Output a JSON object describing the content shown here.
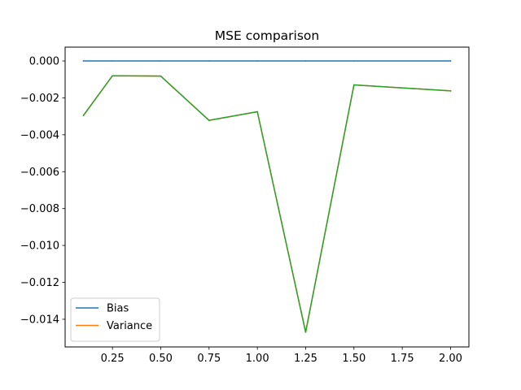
{
  "chart_data": {
    "type": "line",
    "title": "MSE comparison",
    "xlabel": "",
    "ylabel": "",
    "xlim": [
      0.005,
      2.095
    ],
    "ylim": [
      -0.0155,
      0.00075
    ],
    "xticks": [
      0.25,
      0.5,
      0.75,
      1.0,
      1.25,
      1.5,
      1.75,
      2.0
    ],
    "xtick_labels": [
      "0.25",
      "0.50",
      "0.75",
      "1.00",
      "1.25",
      "1.50",
      "1.75",
      "2.00"
    ],
    "yticks": [
      0.0,
      -0.002,
      -0.004,
      -0.006,
      -0.008,
      -0.01,
      -0.012,
      -0.014
    ],
    "ytick_labels": [
      "0.000",
      "−0.002",
      "−0.004",
      "−0.006",
      "−0.008",
      "−0.010",
      "−0.012",
      "−0.014"
    ],
    "grid": false,
    "legend_position": "lower-left",
    "x": [
      0.1,
      0.25,
      0.5,
      0.75,
      1.0,
      1.25,
      1.5,
      2.0
    ],
    "series": [
      {
        "name": "Bias",
        "color": "#1f77b4",
        "values": [
          0.0,
          0.0,
          0.0,
          0.0,
          0.0,
          0.0,
          0.0,
          0.0
        ]
      },
      {
        "name": "Variance",
        "color": "#ff7f0e",
        "values": [
          -0.00295,
          -0.0008,
          -0.00082,
          -0.00322,
          -0.00275,
          -0.0147,
          -0.0013,
          -0.00162
        ]
      },
      {
        "color": "#2ca02c",
        "values": [
          -0.00295,
          -0.0008,
          -0.00082,
          -0.00322,
          -0.00275,
          -0.0147,
          -0.0013,
          -0.00162
        ]
      }
    ]
  }
}
